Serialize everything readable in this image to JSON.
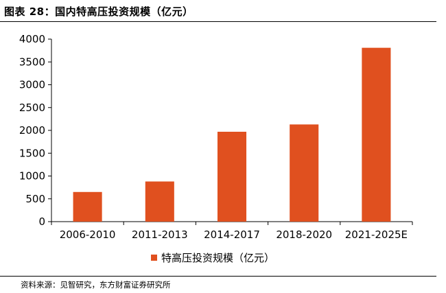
{
  "title": "图表 28：国内特高压投资规模（亿元）",
  "source": "资料来源：见智研究，东方财富证券研究所",
  "colors": {
    "bar": "#e0501f",
    "axis": "#000000"
  },
  "chart_data": {
    "type": "bar",
    "categories": [
      "2006-2010",
      "2011-2013",
      "2014-2017",
      "2018-2020",
      "2021-2025E"
    ],
    "series": [
      {
        "name": "特高压投资规模（亿元）",
        "values": [
          650,
          880,
          1970,
          2130,
          3810
        ]
      }
    ],
    "ylim": [
      0,
      4000
    ],
    "yticks": [
      0,
      500,
      1000,
      1500,
      2000,
      2500,
      3000,
      3500,
      4000
    ],
    "grid": false,
    "legend": "bottom-center"
  }
}
